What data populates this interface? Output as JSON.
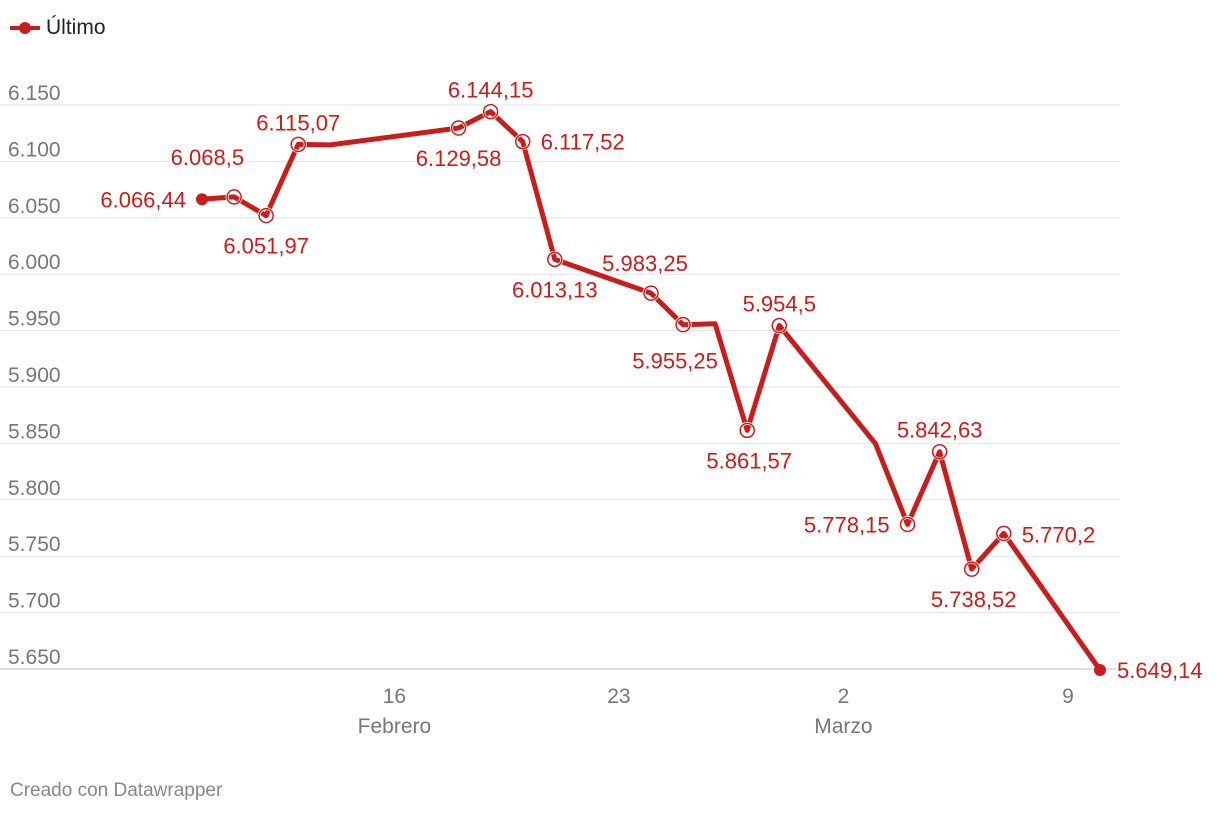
{
  "chart_data": {
    "type": "line",
    "series": [
      {
        "name": "Último",
        "color": "#c71e1d",
        "points": [
          {
            "x": "2025-02-10",
            "y": 6066.44,
            "label": "6.066,44"
          },
          {
            "x": "2025-02-11",
            "y": 6068.5,
            "label": "6.068,5"
          },
          {
            "x": "2025-02-12",
            "y": 6051.97,
            "label": "6.051,97"
          },
          {
            "x": "2025-02-13",
            "y": 6115.07,
            "label": "6.115,07"
          },
          {
            "x": "2025-02-14",
            "y": 6114.6
          },
          {
            "x": "2025-02-18",
            "y": 6129.58,
            "label": "6.129,58"
          },
          {
            "x": "2025-02-19",
            "y": 6144.15,
            "label": "6.144,15"
          },
          {
            "x": "2025-02-20",
            "y": 6117.52,
            "label": "6.117,52"
          },
          {
            "x": "2025-02-21",
            "y": 6013.13,
            "label": "6.013,13"
          },
          {
            "x": "2025-02-24",
            "y": 5983.25,
            "label": "5.983,25"
          },
          {
            "x": "2025-02-25",
            "y": 5955.25,
            "label": "5.955,25"
          },
          {
            "x": "2025-02-26",
            "y": 5956.06
          },
          {
            "x": "2025-02-27",
            "y": 5861.57,
            "label": "5.861,57"
          },
          {
            "x": "2025-02-28",
            "y": 5954.5,
            "label": "5.954,5"
          },
          {
            "x": "2025-03-03",
            "y": 5849.72
          },
          {
            "x": "2025-03-04",
            "y": 5778.15,
            "label": "5.778,15"
          },
          {
            "x": "2025-03-05",
            "y": 5842.63,
            "label": "5.842,63"
          },
          {
            "x": "2025-03-06",
            "y": 5738.52,
            "label": "5.738,52"
          },
          {
            "x": "2025-03-07",
            "y": 5770.2,
            "label": "5.770,2"
          },
          {
            "x": "2025-03-10",
            "y": 5649.14,
            "label": "5.649,14"
          }
        ]
      }
    ],
    "x_ticks": [
      {
        "date": "2025-02-16",
        "label": "16",
        "sublabel": "Febrero"
      },
      {
        "date": "2025-02-23",
        "label": "23",
        "sublabel": ""
      },
      {
        "date": "2025-03-02",
        "label": "2",
        "sublabel": "Marzo"
      },
      {
        "date": "2025-03-09",
        "label": "9",
        "sublabel": ""
      }
    ],
    "y_ticks": [
      {
        "value": 6150,
        "label": "6.150"
      },
      {
        "value": 6100,
        "label": "6.100"
      },
      {
        "value": 6050,
        "label": "6.050"
      },
      {
        "value": 6000,
        "label": "6.000"
      },
      {
        "value": 5950,
        "label": "5.950"
      },
      {
        "value": 5900,
        "label": "5.900"
      },
      {
        "value": 5850,
        "label": "5.850"
      },
      {
        "value": 5800,
        "label": "5.800"
      },
      {
        "value": 5750,
        "label": "5.750"
      },
      {
        "value": 5700,
        "label": "5.700"
      },
      {
        "value": 5650,
        "label": "5.650"
      }
    ],
    "ylim": [
      5650,
      6150
    ],
    "xlim": [
      "2025-02-10",
      "2025-03-10"
    ],
    "grid": true,
    "legend_position": "top-left"
  },
  "legend": {
    "label": "Último"
  },
  "credit": "Creado con Datawrapper"
}
